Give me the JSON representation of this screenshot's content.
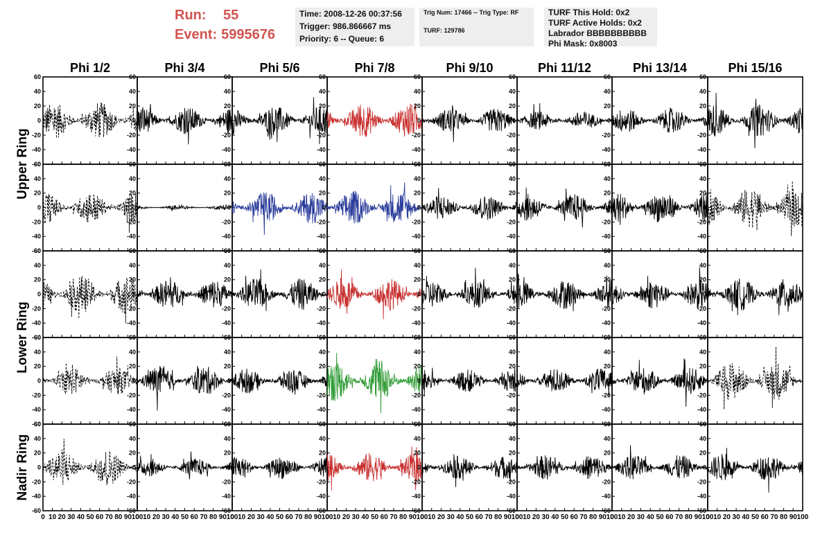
{
  "header": {
    "run_label": "Run:",
    "run_value": "55",
    "event_label": "Event:",
    "event_value": "5995676"
  },
  "info_panel_1": {
    "time": "Time: 2008-12-26 00:37:56",
    "trigger": "Trigger: 986.866667 ms",
    "priority": "Priority: 6 -- Queue: 6"
  },
  "info_panel_2": {
    "trig": "Trig Num: 17466 -- Trig Type: RF",
    "turf": "TURF: 129786"
  },
  "info_panel_3": {
    "this_hold": "TURF This Hold: 0x2",
    "active_holds": "TURF Active Holds: 0x2",
    "labrador": "Labrador BBBBBBBBBB",
    "phi_mask": "Phi Mask: 0x8003"
  },
  "colors": {
    "black": "#000000",
    "red": "#c8302f",
    "blue": "#2b3d9b",
    "green": "#2e9a34",
    "header_red": "#d1534f",
    "panel_bg": "#eeeeee"
  },
  "chart_data": {
    "type": "line",
    "title": "",
    "column_labels": [
      "Phi 1/2",
      "Phi 3/4",
      "Phi 5/6",
      "Phi 7/8",
      "Phi 9/10",
      "Phi 11/12",
      "Phi 13/14",
      "Phi 15/16"
    ],
    "ring_labels": [
      "Upper Ring",
      "Lower Ring",
      "Nadir Ring"
    ],
    "x_range": [
      0,
      100
    ],
    "y_range": [
      -60,
      60
    ],
    "y_ticks": [
      -60,
      -40,
      -20,
      0,
      20,
      40,
      60
    ],
    "x_ticks": [
      0,
      10,
      20,
      30,
      40,
      50,
      60,
      70,
      80,
      90,
      100
    ],
    "grid": false,
    "panels": [
      [
        {
          "style": "dashed",
          "color": "black",
          "amp": 16
        },
        {
          "style": "solid",
          "color": "black",
          "amp": 12
        },
        {
          "style": "solid",
          "color": "black",
          "amp": 13
        },
        {
          "style": "solid",
          "color": "red",
          "amp": 15
        },
        {
          "style": "solid",
          "color": "black",
          "amp": 11
        },
        {
          "style": "solid",
          "color": "black",
          "amp": 8
        },
        {
          "style": "solid",
          "color": "black",
          "amp": 11
        },
        {
          "style": "solid",
          "color": "black",
          "amp": 14
        }
      ],
      [
        {
          "style": "dashed",
          "color": "black",
          "amp": 14
        },
        {
          "style": "solid",
          "color": "black",
          "amp": 2
        },
        {
          "style": "solid",
          "color": "blue",
          "amp": 14
        },
        {
          "style": "solid",
          "color": "blue",
          "amp": 15
        },
        {
          "style": "solid",
          "color": "black",
          "amp": 11
        },
        {
          "style": "solid",
          "color": "black",
          "amp": 12
        },
        {
          "style": "solid",
          "color": "black",
          "amp": 14
        },
        {
          "style": "dashed",
          "color": "black",
          "amp": 18
        }
      ],
      [
        {
          "style": "dashed",
          "color": "black",
          "amp": 17
        },
        {
          "style": "solid",
          "color": "black",
          "amp": 13
        },
        {
          "style": "solid",
          "color": "black",
          "amp": 14
        },
        {
          "style": "solid",
          "color": "red",
          "amp": 14
        },
        {
          "style": "solid",
          "color": "black",
          "amp": 12
        },
        {
          "style": "solid",
          "color": "black",
          "amp": 13
        },
        {
          "style": "solid",
          "color": "black",
          "amp": 13
        },
        {
          "style": "solid",
          "color": "black",
          "amp": 14
        }
      ],
      [
        {
          "style": "dashed",
          "color": "black",
          "amp": 12
        },
        {
          "style": "solid",
          "color": "black",
          "amp": 13
        },
        {
          "style": "solid",
          "color": "black",
          "amp": 11
        },
        {
          "style": "solid",
          "color": "green",
          "amp": 18
        },
        {
          "style": "solid",
          "color": "black",
          "amp": 10
        },
        {
          "style": "solid",
          "color": "black",
          "amp": 11
        },
        {
          "style": "solid",
          "color": "black",
          "amp": 12
        },
        {
          "style": "dashed",
          "color": "black",
          "amp": 17
        }
      ],
      [
        {
          "style": "dashed",
          "color": "black",
          "amp": 16
        },
        {
          "style": "solid",
          "color": "black",
          "amp": 8
        },
        {
          "style": "solid",
          "color": "black",
          "amp": 10
        },
        {
          "style": "solid",
          "color": "red",
          "amp": 13
        },
        {
          "style": "solid",
          "color": "black",
          "amp": 10
        },
        {
          "style": "solid",
          "color": "black",
          "amp": 11
        },
        {
          "style": "solid",
          "color": "black",
          "amp": 11
        },
        {
          "style": "solid",
          "color": "black",
          "amp": 12
        }
      ]
    ]
  }
}
